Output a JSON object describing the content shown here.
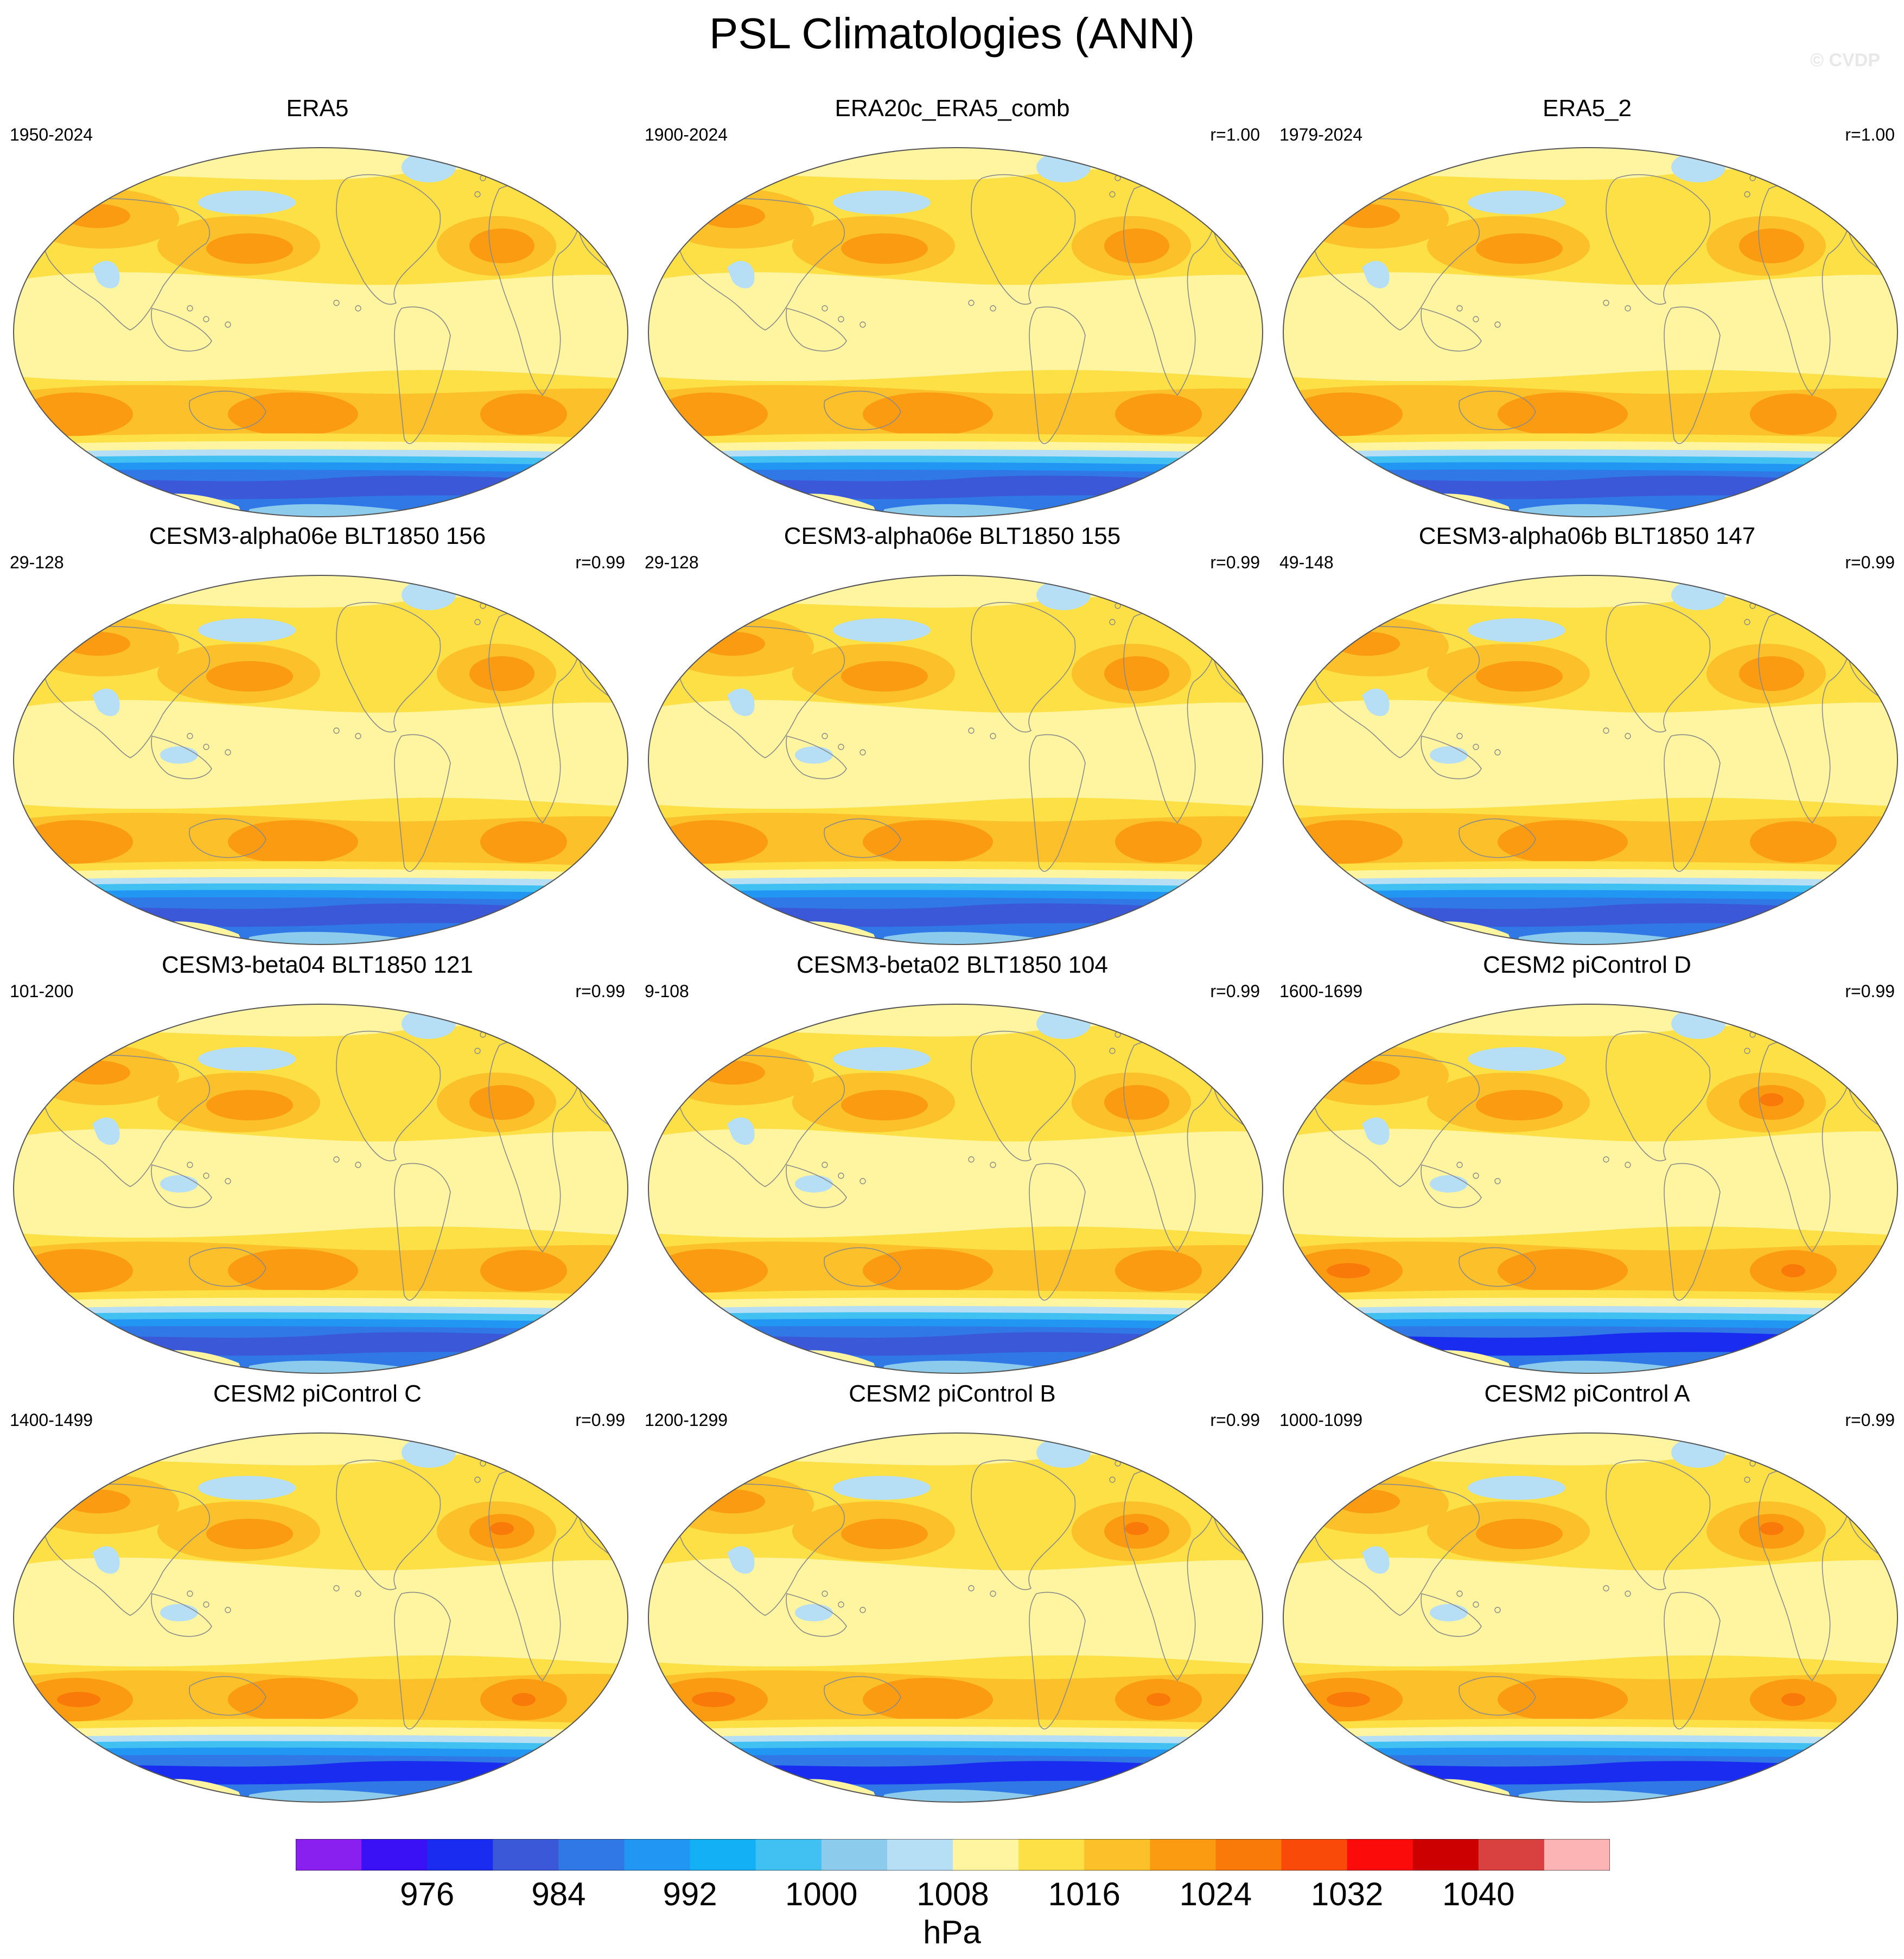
{
  "title": "PSL Climatologies (ANN)",
  "watermark": "© CVDP",
  "panels": [
    {
      "title": "ERA5",
      "years": "1950-2024",
      "corr": ""
    },
    {
      "title": "ERA20c_ERA5_comb",
      "years": "1900-2024",
      "corr": "r=1.00"
    },
    {
      "title": "ERA5_2",
      "years": "1979-2024",
      "corr": "r=1.00"
    },
    {
      "title": "CESM3-alpha06e BLT1850 156",
      "years": "29-128",
      "corr": "r=0.99"
    },
    {
      "title": "CESM3-alpha06e BLT1850 155",
      "years": "29-128",
      "corr": "r=0.99"
    },
    {
      "title": "CESM3-alpha06b BLT1850 147",
      "years": "49-148",
      "corr": "r=0.99"
    },
    {
      "title": "CESM3-beta04 BLT1850 121",
      "years": "101-200",
      "corr": "r=0.99"
    },
    {
      "title": "CESM3-beta02 BLT1850 104",
      "years": "9-108",
      "corr": "r=0.99"
    },
    {
      "title": "CESM2 piControl D",
      "years": "1600-1699",
      "corr": "r=0.99"
    },
    {
      "title": "CESM2 piControl C",
      "years": "1400-1499",
      "corr": "r=0.99"
    },
    {
      "title": "CESM2 piControl B",
      "years": "1200-1299",
      "corr": "r=0.99"
    },
    {
      "title": "CESM2 piControl A",
      "years": "1000-1099",
      "corr": "r=0.99"
    }
  ],
  "colorbar": {
    "units": "hPa",
    "colors": [
      "#8a20f0",
      "#3a10f5",
      "#1a2cf0",
      "#3a58d8",
      "#2f78e6",
      "#2196f3",
      "#14b0f5",
      "#41c0f2",
      "#8dcbec",
      "#b6def5",
      "#fff5a0",
      "#fde045",
      "#fcc02a",
      "#fa9b12",
      "#f97a08",
      "#fa4a0a",
      "#fb0c0a",
      "#cd0000",
      "#d94040",
      "#fcb4b4"
    ],
    "ticks": [
      {
        "label": "976",
        "index": 2
      },
      {
        "label": "984",
        "index": 4
      },
      {
        "label": "992",
        "index": 6
      },
      {
        "label": "1000",
        "index": 8
      },
      {
        "label": "1008",
        "index": 10
      },
      {
        "label": "1016",
        "index": 12
      },
      {
        "label": "1024",
        "index": 14
      },
      {
        "label": "1032",
        "index": 16
      },
      {
        "label": "1040",
        "index": 18
      }
    ]
  }
}
